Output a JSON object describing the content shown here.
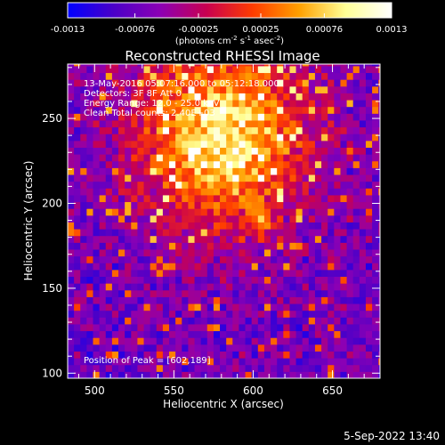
{
  "chart_data": {
    "type": "heatmap",
    "title": "Reconstructed RHESSI Image",
    "xlabel": "Heliocentric X (arcsec)",
    "ylabel": "Heliocentric Y (arcsec)",
    "xlim": [
      483,
      680
    ],
    "ylim": [
      97,
      282
    ],
    "xticks": [
      500,
      550,
      600,
      650
    ],
    "yticks": [
      100,
      150,
      200,
      250
    ],
    "grid": false,
    "colorbar": {
      "location": "top",
      "range": [
        -0.0013,
        0.0013
      ],
      "tick_labels": [
        "-0.0013",
        "-0.00076",
        "-0.00025",
        "0.00025",
        "0.00076",
        "0.0013"
      ],
      "unit_parts": [
        "(photons cm",
        "-2",
        " s",
        "-1",
        " asec",
        "-2",
        ")"
      ],
      "colors": [
        "#0000ff",
        "#4b00c8",
        "#8c00b4",
        "#c80050",
        "#ff3c00",
        "#ffa000",
        "#ffff96",
        "#ffffff"
      ]
    },
    "annotations": [
      "13-May-2016 05:07:16.000 to 05:12:18.000",
      "Detectors: 3F 8F  Att 0",
      "Energy Range: 12.0 - 25.0 keV",
      "Clean     Total counts: 2.40E+03"
    ],
    "peak_label": "Position of Peak = [602,189]",
    "peak": {
      "x": 602,
      "y": 189
    },
    "source_center": {
      "x": 578,
      "y": 238
    },
    "pixel_size_arcsec": 4
  },
  "footer": {
    "timestamp": "5-Sep-2022 13:40"
  }
}
